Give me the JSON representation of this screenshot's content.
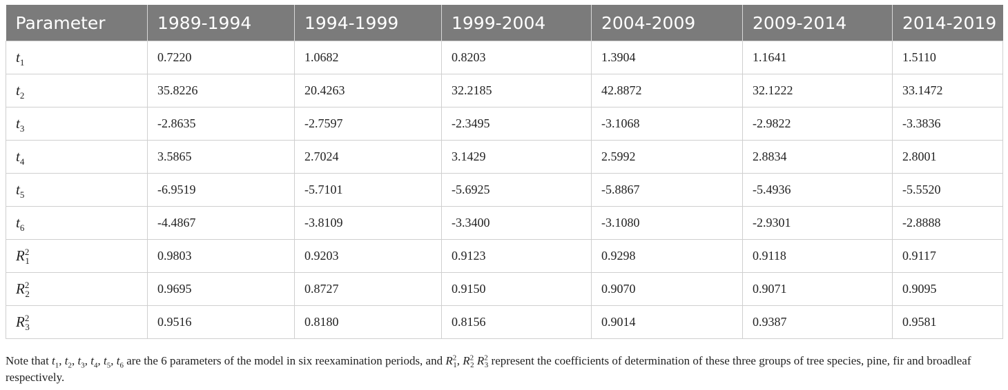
{
  "table": {
    "headers": [
      "Parameter",
      "1989-1994",
      "1994-1999",
      "1999-2004",
      "2004-2009",
      "2009-2014",
      "2014-2019"
    ],
    "rows": [
      {
        "param": {
          "base": "t",
          "sub": "1",
          "sup": ""
        },
        "values": [
          "0.7220",
          "1.0682",
          "0.8203",
          "1.3904",
          "1.1641",
          "1.5110"
        ]
      },
      {
        "param": {
          "base": "t",
          "sub": "2",
          "sup": ""
        },
        "values": [
          "35.8226",
          "20.4263",
          "32.2185",
          "42.8872",
          "32.1222",
          "33.1472"
        ]
      },
      {
        "param": {
          "base": "t",
          "sub": "3",
          "sup": ""
        },
        "values": [
          "-2.8635",
          "-2.7597",
          "-2.3495",
          "-3.1068",
          "-2.9822",
          "-3.3836"
        ]
      },
      {
        "param": {
          "base": "t",
          "sub": "4",
          "sup": ""
        },
        "values": [
          "3.5865",
          "2.7024",
          "3.1429",
          "2.5992",
          "2.8834",
          "2.8001"
        ]
      },
      {
        "param": {
          "base": "t",
          "sub": "5",
          "sup": ""
        },
        "values": [
          "-6.9519",
          "-5.7101",
          "-5.6925",
          "-5.8867",
          "-5.4936",
          "-5.5520"
        ]
      },
      {
        "param": {
          "base": "t",
          "sub": "6",
          "sup": ""
        },
        "values": [
          "-4.4867",
          "-3.8109",
          "-3.3400",
          "-3.1080",
          "-2.9301",
          "-2.8888"
        ]
      },
      {
        "param": {
          "base": "R",
          "sub": "1",
          "sup": "2"
        },
        "values": [
          "0.9803",
          "0.9203",
          "0.9123",
          "0.9298",
          "0.9118",
          "0.9117"
        ]
      },
      {
        "param": {
          "base": "R",
          "sub": "2",
          "sup": "2"
        },
        "values": [
          "0.9695",
          "0.8727",
          "0.9150",
          "0.9070",
          "0.9071",
          "0.9095"
        ]
      },
      {
        "param": {
          "base": "R",
          "sub": "3",
          "sup": "2"
        },
        "values": [
          "0.9516",
          "0.8180",
          "0.8156",
          "0.9014",
          "0.9387",
          "0.9581"
        ]
      }
    ]
  },
  "note": {
    "prefix": "Note that",
    "params_list": [
      "1",
      "2",
      "3",
      "4",
      "5",
      "6"
    ],
    "middle": "are the 6 parameters of the model in six reexamination periods, and",
    "r_list": [
      "1",
      "2",
      "3"
    ],
    "suffix": "represent the coefficients of determination of these three groups of tree species, pine, fir and broadleaf respectively."
  }
}
